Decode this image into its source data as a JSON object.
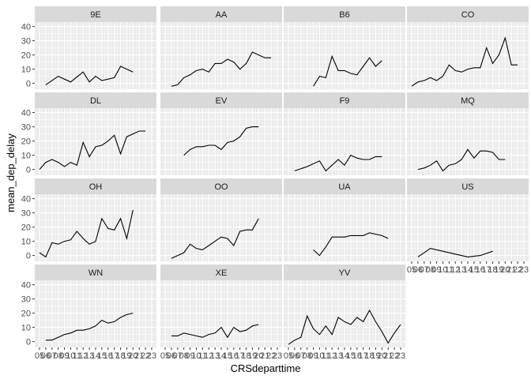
{
  "chart_data": {
    "type": "line",
    "facet_grid": "4x4 small multiples, shared axes, gray strip headers",
    "xlabel": "CRSdeparttime",
    "ylabel": "mean_dep_delay",
    "xlim": [
      5,
      23
    ],
    "ylim": [
      -3,
      42
    ],
    "y_ticks": [
      0,
      10,
      20,
      30,
      40
    ],
    "x_ticks": [
      5,
      6,
      7,
      8,
      9,
      10,
      11,
      12,
      13,
      14,
      15,
      16,
      17,
      18,
      19,
      20,
      21,
      22,
      23
    ],
    "x_tick_labels": [
      "05",
      "06",
      "07",
      "08",
      "09",
      "10",
      "11",
      "12",
      "13",
      "14",
      "15",
      "16",
      "17",
      "18",
      "19",
      "20",
      "21",
      "22",
      "23"
    ],
    "grid": true,
    "colors": {
      "panel_bg": "#ebebeb",
      "strip_bg": "#d9d9d9",
      "grid": "#ffffff",
      "line": "#000000"
    },
    "facets": [
      {
        "name": "9E",
        "x": [
          6,
          8,
          10,
          12,
          13,
          14,
          15,
          17,
          18,
          19,
          20
        ],
        "y": [
          -1,
          5,
          1,
          8,
          1,
          5,
          2,
          4,
          12,
          10,
          8
        ]
      },
      {
        "name": "AA",
        "x": [
          6,
          7,
          8,
          9,
          10,
          11,
          12,
          13,
          14,
          15,
          16,
          17,
          18,
          19,
          20,
          21,
          22
        ],
        "y": [
          -2,
          -1,
          4,
          6,
          9,
          10,
          8,
          14,
          14,
          17,
          15,
          10,
          14,
          22,
          20,
          18,
          18
        ]
      },
      {
        "name": "B6",
        "x": [
          9,
          10,
          11,
          12,
          13,
          14,
          15,
          16,
          17,
          18,
          19,
          20
        ],
        "y": [
          -2,
          5,
          4,
          19,
          9,
          9,
          7,
          6,
          12,
          18,
          12,
          16
        ]
      },
      {
        "name": "CO",
        "x": [
          5,
          6,
          7,
          8,
          9,
          10,
          11,
          12,
          13,
          14,
          15,
          16,
          17,
          18,
          19,
          20,
          21,
          22
        ],
        "y": [
          -2,
          1,
          2,
          4,
          2,
          5,
          13,
          9,
          8,
          10,
          11,
          11,
          25,
          14,
          20,
          32,
          13,
          13
        ]
      },
      {
        "name": "DL",
        "x": [
          5,
          6,
          7,
          8,
          9,
          10,
          11,
          12,
          13,
          14,
          15,
          16,
          17,
          18,
          19,
          20,
          21,
          22
        ],
        "y": [
          0,
          5,
          7,
          5,
          2,
          5,
          3,
          19,
          9,
          16,
          17,
          20,
          24,
          11,
          23,
          25,
          27,
          27
        ]
      },
      {
        "name": "EV",
        "x": [
          8,
          9,
          10,
          11,
          12,
          13,
          14,
          15,
          16,
          17,
          18,
          19,
          20
        ],
        "y": [
          10,
          14,
          16,
          16,
          17,
          17,
          14,
          19,
          20,
          23,
          29,
          30,
          30
        ]
      },
      {
        "name": "F9",
        "x": [
          6,
          8,
          10,
          11,
          12,
          13,
          14,
          15,
          16,
          17,
          18,
          19,
          20
        ],
        "y": [
          -1,
          2,
          6,
          -1,
          3,
          7,
          3,
          10,
          8,
          7,
          7,
          9,
          9
        ]
      },
      {
        "name": "MQ",
        "x": [
          6,
          7,
          8,
          9,
          10,
          11,
          12,
          13,
          14,
          15,
          16,
          17,
          18,
          19,
          20
        ],
        "y": [
          0,
          1,
          3,
          6,
          -1,
          3,
          4,
          7,
          14,
          8,
          13,
          13,
          12,
          7,
          7
        ]
      },
      {
        "name": "OH",
        "x": [
          5,
          6,
          7,
          8,
          9,
          10,
          11,
          12,
          13,
          14,
          15,
          16,
          17,
          18,
          19,
          20
        ],
        "y": [
          2,
          -1,
          9,
          8,
          10,
          11,
          17,
          12,
          8,
          10,
          26,
          19,
          18,
          26,
          12,
          32
        ]
      },
      {
        "name": "OO",
        "x": [
          6,
          7,
          8,
          9,
          10,
          11,
          12,
          13,
          14,
          15,
          16,
          17,
          18,
          19,
          20
        ],
        "y": [
          -2,
          0,
          2,
          8,
          5,
          4,
          7,
          10,
          13,
          12,
          7,
          17,
          18,
          18,
          26
        ]
      },
      {
        "name": "UA",
        "x": [
          9,
          10,
          11,
          12,
          13,
          14,
          15,
          16,
          17,
          18,
          19,
          20,
          21
        ],
        "y": [
          4,
          0,
          6,
          13,
          13,
          13,
          14,
          14,
          14,
          16,
          15,
          14,
          12
        ]
      },
      {
        "name": "US",
        "x": [
          6,
          8,
          10,
          12,
          14,
          16,
          18
        ],
        "y": [
          -1,
          5,
          3,
          1,
          -1,
          0,
          3
        ]
      },
      {
        "name": "WN",
        "x": [
          6,
          7,
          8,
          9,
          10,
          11,
          12,
          13,
          14,
          15,
          16,
          17,
          18,
          19,
          20
        ],
        "y": [
          1,
          1,
          3,
          5,
          6,
          8,
          8,
          9,
          11,
          15,
          13,
          14,
          17,
          19,
          20
        ]
      },
      {
        "name": "XE",
        "x": [
          6,
          7,
          8,
          9,
          10,
          11,
          12,
          13,
          14,
          15,
          16,
          17,
          18,
          19,
          20
        ],
        "y": [
          4,
          4,
          6,
          5,
          4,
          3,
          5,
          6,
          10,
          3,
          10,
          7,
          8,
          11,
          12
        ]
      },
      {
        "name": "YV",
        "x": [
          5,
          6,
          7,
          8,
          9,
          10,
          11,
          12,
          13,
          14,
          15,
          16,
          17,
          18,
          19,
          20,
          21,
          22,
          23
        ],
        "y": [
          -2,
          1,
          3,
          18,
          9,
          5,
          11,
          5,
          17,
          14,
          12,
          17,
          14,
          22,
          14,
          7,
          -1,
          6,
          12
        ]
      }
    ]
  }
}
